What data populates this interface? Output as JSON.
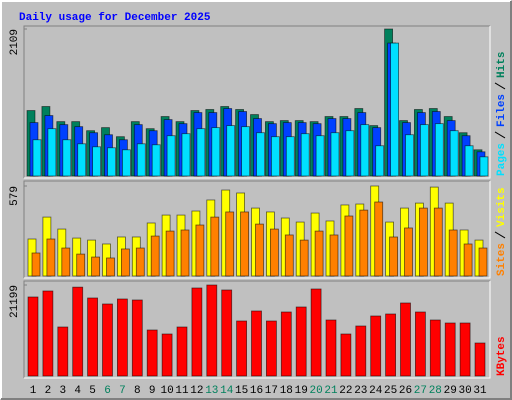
{
  "chart_data": [
    {
      "type": "bar",
      "title": "Daily usage for December 2025",
      "categories": [
        "1",
        "2",
        "3",
        "4",
        "5",
        "6",
        "7",
        "8",
        "9",
        "10",
        "11",
        "12",
        "13",
        "14",
        "15",
        "16",
        "17",
        "18",
        "19",
        "20",
        "21",
        "22",
        "23",
        "24",
        "25",
        "26",
        "27",
        "28",
        "29",
        "30",
        "31"
      ],
      "ylim": [
        0,
        2109
      ],
      "yticks": [
        2109
      ],
      "series": [
        {
          "name": "Hits",
          "color": "#00805c",
          "values": [
            939,
            997,
            780,
            780,
            650,
            694,
            564,
            780,
            679,
            853,
            780,
            939,
            954,
            997,
            954,
            881,
            780,
            795,
            795,
            780,
            853,
            853,
            968,
            723,
            2109,
            795,
            954,
            968,
            853,
            621,
            376
          ]
        },
        {
          "name": "Files",
          "color": "#0040ff",
          "values": [
            766,
            867,
            737,
            708,
            621,
            592,
            520,
            737,
            650,
            809,
            751,
            910,
            910,
            968,
            925,
            824,
            751,
            766,
            766,
            751,
            824,
            824,
            910,
            694,
            1907,
            766,
            910,
            925,
            795,
            578,
            347
          ]
        },
        {
          "name": "Pages",
          "color": "#00e0ff",
          "values": [
            520,
            679,
            520,
            462,
            419,
            405,
            376,
            462,
            448,
            578,
            607,
            679,
            694,
            723,
            708,
            621,
            564,
            564,
            607,
            578,
            621,
            650,
            737,
            434,
            1907,
            592,
            737,
            751,
            650,
            434,
            275
          ]
        }
      ]
    },
    {
      "type": "bar",
      "ylim": [
        0,
        579
      ],
      "yticks": [
        579
      ],
      "series": [
        {
          "name": "Visits",
          "color": "#ffff00",
          "values": [
            238,
            379,
            302,
            244,
            231,
            206,
            251,
            251,
            341,
            392,
            392,
            418,
            489,
            553,
            534,
            437,
            412,
            373,
            347,
            405,
            354,
            457,
            463,
            579,
            347,
            437,
            469,
            572,
            469,
            296,
            231
          ]
        },
        {
          "name": "Sites",
          "color": "#ff8000",
          "values": [
            148,
            238,
            180,
            141,
            122,
            116,
            174,
            180,
            257,
            289,
            296,
            328,
            379,
            412,
            412,
            334,
            302,
            264,
            231,
            289,
            264,
            386,
            424,
            476,
            251,
            309,
            437,
            437,
            296,
            206,
            180
          ]
        }
      ]
    },
    {
      "type": "bar",
      "ylim": [
        0,
        21199
      ],
      "yticks": [
        21199
      ],
      "category_colors": [
        "#000000",
        "#000000",
        "#000000",
        "#000000",
        "#000000",
        "#00805c",
        "#00805c",
        "#000000",
        "#000000",
        "#000000",
        "#000000",
        "#000000",
        "#00805c",
        "#00805c",
        "#000000",
        "#000000",
        "#000000",
        "#000000",
        "#000000",
        "#00805c",
        "#00805c",
        "#000000",
        "#000000",
        "#000000",
        "#000000",
        "#000000",
        "#00805c",
        "#00805c",
        "#000000",
        "#000000",
        "#000000"
      ],
      "series": [
        {
          "name": "KBytes",
          "color": "#ff0000",
          "values": [
            18407,
            19805,
            11417,
            20700,
            18174,
            16776,
            17941,
            17708,
            10718,
            9786,
            11417,
            20504,
            21199,
            20038,
            12815,
            15145,
            12815,
            14912,
            16077,
            20271,
            13048,
            9786,
            11650,
            13980,
            14446,
            17009,
            14912,
            13048,
            12349,
            12349,
            7689
          ]
        }
      ]
    }
  ]
}
